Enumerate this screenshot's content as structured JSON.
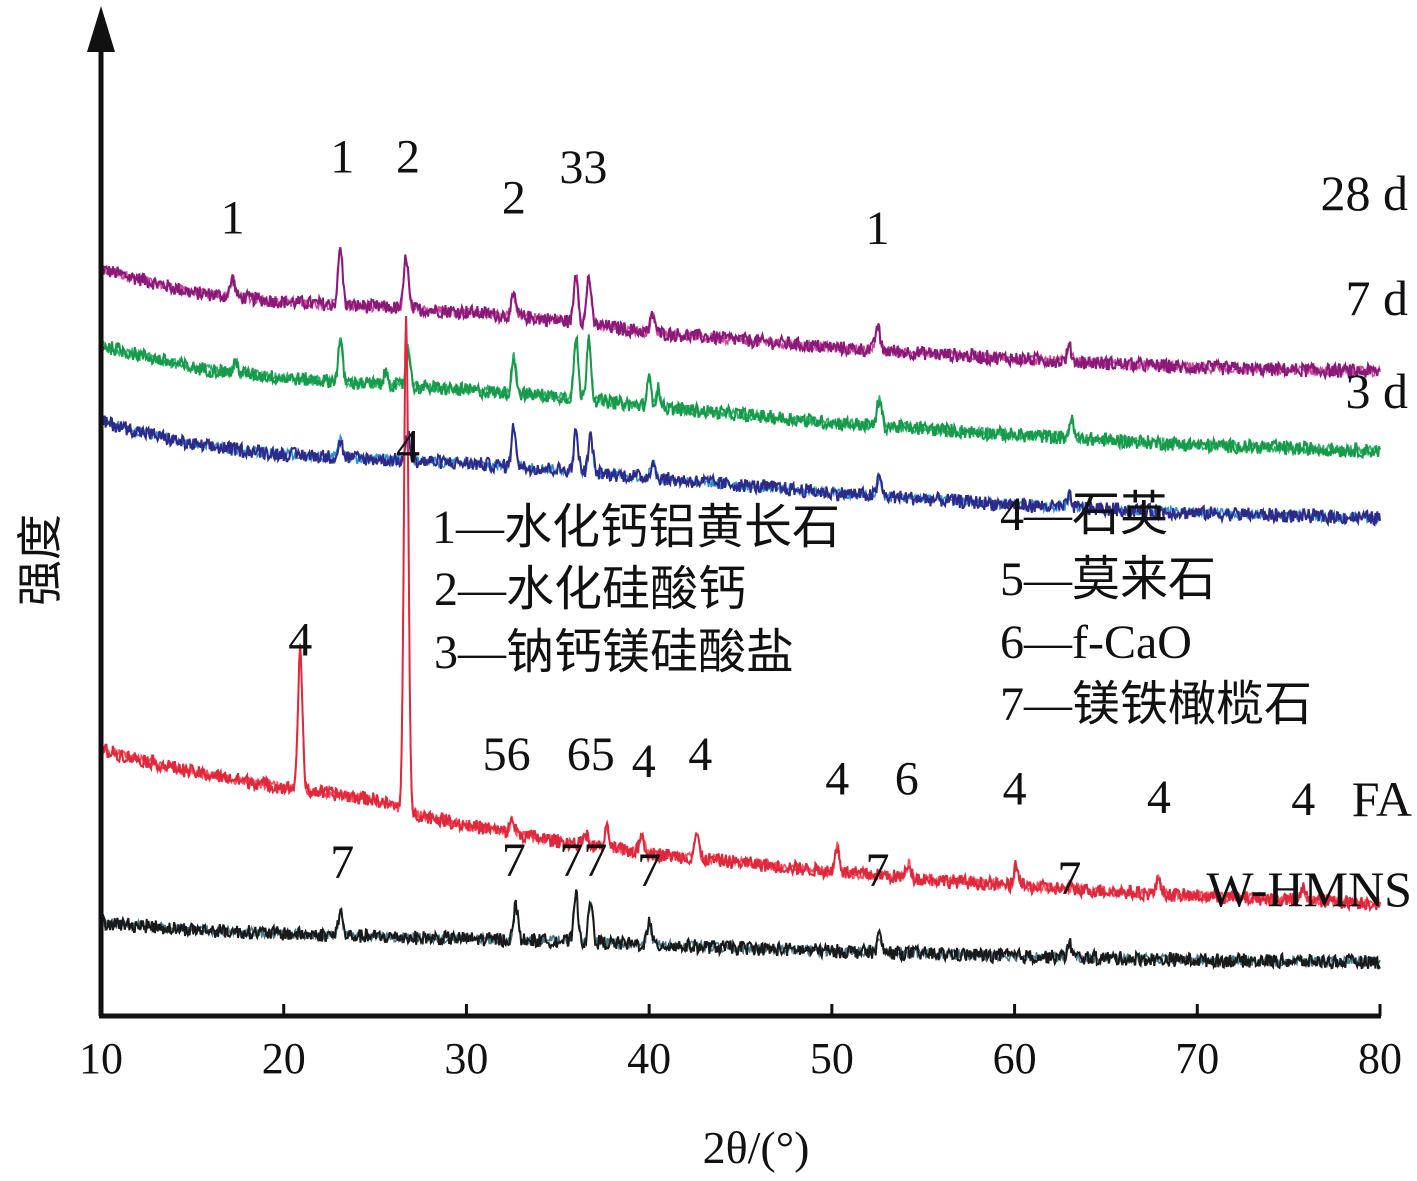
{
  "chart_data": {
    "type": "line",
    "xlabel": "2θ/(°)",
    "ylabel": "强度",
    "xlim": [
      10,
      80
    ],
    "xticks": [
      "10",
      "20",
      "30",
      "40",
      "50",
      "60",
      "70",
      "80"
    ],
    "grid": false,
    "series": [
      {
        "name": "28 d",
        "color": "#8a1a7a",
        "noise_color": "#d0479a",
        "baseline": [
          [
            10,
            0.735
          ],
          [
            15,
            0.712
          ],
          [
            20,
            0.703
          ],
          [
            25,
            0.698
          ],
          [
            30,
            0.693
          ],
          [
            35,
            0.685
          ],
          [
            40,
            0.673
          ],
          [
            50,
            0.658
          ],
          [
            60,
            0.647
          ],
          [
            70,
            0.638
          ],
          [
            80,
            0.634
          ]
        ],
        "peaks": [
          [
            17.2,
            0.018
          ],
          [
            23.1,
            0.056
          ],
          [
            26.7,
            0.052
          ],
          [
            32.6,
            0.02
          ],
          [
            36.0,
            0.048
          ],
          [
            36.7,
            0.048
          ],
          [
            40.2,
            0.018
          ],
          [
            52.5,
            0.024
          ],
          [
            63.0,
            0.014
          ]
        ]
      },
      {
        "name": "7 d",
        "color": "#179a4a",
        "noise_color": "#2bb36a",
        "baseline": [
          [
            10,
            0.66
          ],
          [
            15,
            0.638
          ],
          [
            20,
            0.628
          ],
          [
            25,
            0.622
          ],
          [
            30,
            0.616
          ],
          [
            35,
            0.61
          ],
          [
            40,
            0.6
          ],
          [
            50,
            0.584
          ],
          [
            60,
            0.572
          ],
          [
            70,
            0.562
          ],
          [
            80,
            0.556
          ]
        ],
        "peaks": [
          [
            17.4,
            0.01
          ],
          [
            23.1,
            0.04
          ],
          [
            25.6,
            0.012
          ],
          [
            26.8,
            0.038
          ],
          [
            32.6,
            0.036
          ],
          [
            36.0,
            0.058
          ],
          [
            36.7,
            0.062
          ],
          [
            40.0,
            0.026
          ],
          [
            40.5,
            0.018
          ],
          [
            52.6,
            0.026
          ],
          [
            63.1,
            0.018
          ]
        ]
      },
      {
        "name": "3 d",
        "color": "#2d2a8a",
        "noise_color": "#2f8fd6",
        "baseline": [
          [
            10,
            0.585
          ],
          [
            15,
            0.562
          ],
          [
            20,
            0.553
          ],
          [
            25,
            0.548
          ],
          [
            30,
            0.544
          ],
          [
            35,
            0.538
          ],
          [
            40,
            0.53
          ],
          [
            50,
            0.515
          ],
          [
            60,
            0.503
          ],
          [
            70,
            0.495
          ],
          [
            80,
            0.49
          ]
        ],
        "peaks": [
          [
            23.1,
            0.016
          ],
          [
            26.8,
            0.026
          ],
          [
            32.6,
            0.04
          ],
          [
            36.0,
            0.038
          ],
          [
            36.8,
            0.036
          ],
          [
            40.2,
            0.016
          ],
          [
            52.6,
            0.018
          ],
          [
            63.0,
            0.01
          ]
        ]
      },
      {
        "name": "FA",
        "color": "#e0283c",
        "noise_color": "#ff4a5a",
        "baseline": [
          [
            10,
            0.262
          ],
          [
            15,
            0.24
          ],
          [
            20,
            0.225
          ],
          [
            25,
            0.213
          ],
          [
            27,
            0.2
          ],
          [
            30,
            0.188
          ],
          [
            35,
            0.172
          ],
          [
            40,
            0.16
          ],
          [
            50,
            0.142
          ],
          [
            60,
            0.128
          ],
          [
            70,
            0.118
          ],
          [
            80,
            0.111
          ]
        ],
        "peaks": [
          [
            20.9,
            0.137
          ],
          [
            26.7,
            0.488
          ],
          [
            32.5,
            0.014
          ],
          [
            36.5,
            0.012
          ],
          [
            37.7,
            0.018
          ],
          [
            39.6,
            0.018
          ],
          [
            42.6,
            0.024
          ],
          [
            50.3,
            0.026
          ],
          [
            54.2,
            0.014
          ],
          [
            60.1,
            0.022
          ],
          [
            67.9,
            0.016
          ],
          [
            75.8,
            0.012
          ]
        ]
      },
      {
        "name": "W-HMNS",
        "color": "#1a1a1a",
        "noise_color": "#4a7a8a",
        "baseline": [
          [
            10,
            0.092
          ],
          [
            15,
            0.085
          ],
          [
            20,
            0.081
          ],
          [
            25,
            0.078
          ],
          [
            30,
            0.076
          ],
          [
            35,
            0.074
          ],
          [
            40,
            0.07
          ],
          [
            50,
            0.064
          ],
          [
            60,
            0.059
          ],
          [
            70,
            0.055
          ],
          [
            80,
            0.053
          ]
        ],
        "peaks": [
          [
            23.1,
            0.024
          ],
          [
            32.7,
            0.034
          ],
          [
            36.0,
            0.046
          ],
          [
            36.8,
            0.04
          ],
          [
            40.0,
            0.022
          ],
          [
            52.6,
            0.016
          ],
          [
            63.0,
            0.014
          ]
        ]
      }
    ],
    "peak_labels": [
      {
        "text": "1",
        "x": 17.2,
        "y": 0.77
      },
      {
        "text": "1",
        "x": 23.2,
        "y": 0.83
      },
      {
        "text": "2",
        "x": 26.8,
        "y": 0.83
      },
      {
        "text": "2",
        "x": 32.6,
        "y": 0.79
      },
      {
        "text": "33",
        "x": 36.4,
        "y": 0.82
      },
      {
        "text": "1",
        "x": 52.5,
        "y": 0.76
      },
      {
        "text": "4",
        "x": 26.8,
        "y": 0.545
      },
      {
        "text": "4",
        "x": 20.9,
        "y": 0.355
      },
      {
        "text": "56",
        "x": 32.2,
        "y": 0.242
      },
      {
        "text": "65",
        "x": 36.8,
        "y": 0.242
      },
      {
        "text": "4",
        "x": 39.7,
        "y": 0.235
      },
      {
        "text": "4",
        "x": 42.8,
        "y": 0.242
      },
      {
        "text": "4",
        "x": 50.3,
        "y": 0.218
      },
      {
        "text": "6",
        "x": 54.1,
        "y": 0.218
      },
      {
        "text": "4",
        "x": 60.0,
        "y": 0.208
      },
      {
        "text": "4",
        "x": 67.9,
        "y": 0.2
      },
      {
        "text": "4",
        "x": 75.8,
        "y": 0.198
      },
      {
        "text": "7",
        "x": 23.2,
        "y": 0.136
      },
      {
        "text": "7",
        "x": 32.6,
        "y": 0.138
      },
      {
        "text": "77",
        "x": 36.4,
        "y": 0.138
      },
      {
        "text": "7",
        "x": 40.0,
        "y": 0.128
      },
      {
        "text": "7",
        "x": 52.5,
        "y": 0.128
      },
      {
        "text": "7",
        "x": 63.0,
        "y": 0.12
      }
    ],
    "legend": [
      "1—水化钙铝黄长石",
      "2—水化硅酸钙",
      "3—钠钙镁硅酸盐",
      "4—石英",
      "5—莫来石",
      "6—f-CaO",
      "7—镁铁橄榄石"
    ]
  }
}
